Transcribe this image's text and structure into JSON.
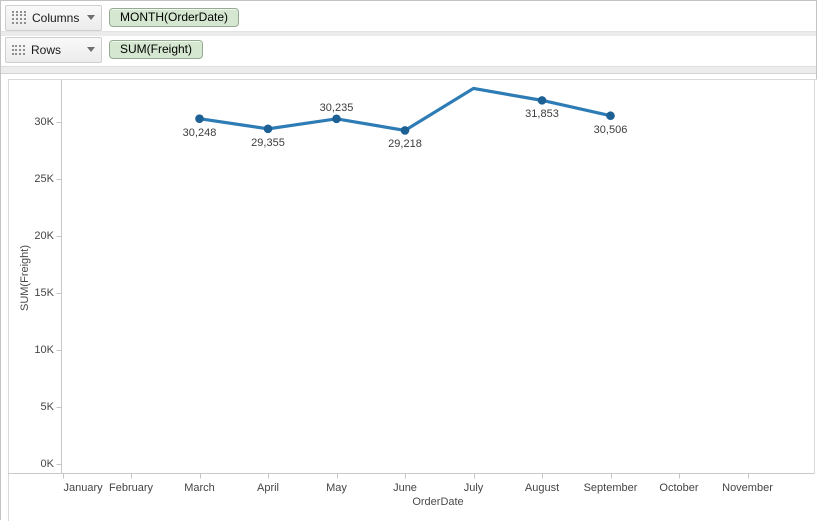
{
  "shelves": {
    "columns": {
      "label": "Columns",
      "pill": "MONTH(OrderDate)"
    },
    "rows": {
      "label": "Rows",
      "pill": "SUM(Freight)"
    }
  },
  "colors": {
    "line": "#2e7cb5",
    "marker": "#1d6093",
    "pill_bg": "#d5e7d0",
    "axis_line": "#c9c9c9",
    "pane_border": "#d9d9d9"
  },
  "chart_data": {
    "type": "line",
    "title": "",
    "xlabel": "OrderDate",
    "ylabel": "SUM(Freight)",
    "categories": [
      "January",
      "February",
      "March",
      "April",
      "May",
      "June",
      "July",
      "August",
      "September",
      "October",
      "November"
    ],
    "yticks": [
      "0K",
      "5K",
      "10K",
      "15K",
      "20K",
      "25K",
      "30K"
    ],
    "ytick_values": [
      0,
      5000,
      10000,
      15000,
      20000,
      25000,
      30000
    ],
    "ylim": [
      0,
      33700
    ],
    "grid": false,
    "legend": null,
    "points": [
      {
        "category": "March",
        "value": 30248,
        "label": "30,248",
        "label_pos": "below",
        "marker": true
      },
      {
        "category": "April",
        "value": 29355,
        "label": "29,355",
        "label_pos": "below",
        "marker": true
      },
      {
        "category": "May",
        "value": 30235,
        "label": "30,235",
        "label_pos": "above",
        "marker": true
      },
      {
        "category": "June",
        "value": 29218,
        "label": "29,218",
        "label_pos": "below",
        "marker": true
      },
      {
        "category": "July",
        "value": 32900,
        "label": "",
        "label_pos": "none",
        "marker": false
      },
      {
        "category": "August",
        "value": 31853,
        "label": "31,853",
        "label_pos": "below",
        "marker": true
      },
      {
        "category": "September",
        "value": 30506,
        "label": "30,506",
        "label_pos": "below",
        "marker": true
      }
    ]
  }
}
